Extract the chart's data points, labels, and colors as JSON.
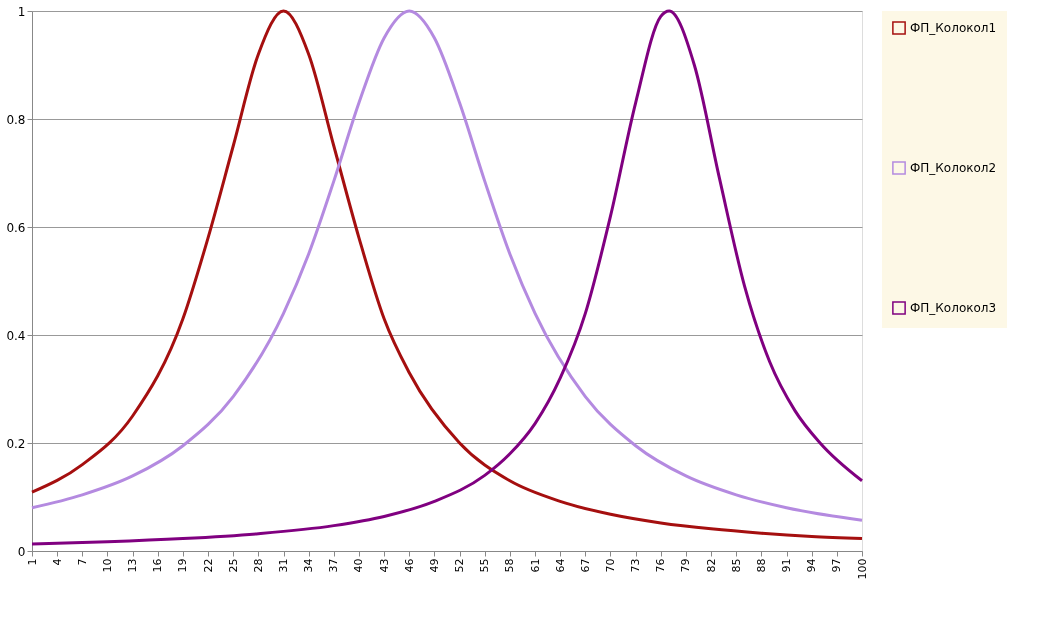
{
  "chart_data": {
    "type": "line",
    "xlim": [
      1,
      100
    ],
    "xticks": [
      1,
      4,
      7,
      10,
      13,
      16,
      19,
      22,
      25,
      28,
      31,
      34,
      37,
      40,
      43,
      46,
      49,
      52,
      55,
      58,
      61,
      64,
      67,
      70,
      73,
      76,
      79,
      82,
      85,
      88,
      91,
      94,
      97,
      100
    ],
    "ylim": [
      0,
      1
    ],
    "yticks": [
      0,
      0.2,
      0.4,
      0.6,
      0.8,
      1
    ],
    "grid": "y",
    "legend": "right",
    "marker": "none",
    "line_style": "solid",
    "series": [
      {
        "name": "ФП_Колокол1",
        "color": "#a50f0f",
        "x": [
          1,
          7,
          13,
          19,
          22,
          25,
          28,
          31,
          34,
          37,
          40,
          43,
          46,
          52,
          58,
          64,
          70,
          76,
          82,
          88,
          94,
          100
        ],
        "values": [
          0.109,
          0.16,
          0.25,
          0.43,
          0.58,
          0.75,
          0.92,
          1,
          0.92,
          0.75,
          0.58,
          0.43,
          0.33,
          0.2,
          0.13,
          0.092,
          0.068,
          0.052,
          0.041,
          0.033,
          0.027,
          0.023
        ]
      },
      {
        "name": "ФП_Колокол2",
        "color": "#b48ae0",
        "x": [
          1,
          7,
          13,
          19,
          25,
          31,
          34,
          37,
          40,
          43,
          46,
          49,
          52,
          55,
          58,
          61,
          67,
          73,
          79,
          85,
          91,
          100
        ],
        "values": [
          0.08,
          0.104,
          0.139,
          0.195,
          0.286,
          0.44,
          0.55,
          0.685,
          0.83,
          0.95,
          1,
          0.95,
          0.83,
          0.685,
          0.55,
          0.44,
          0.286,
          0.195,
          0.139,
          0.104,
          0.08,
          0.057
        ]
      },
      {
        "name": "ФП_Колокол3",
        "color": "#800080",
        "x": [
          1,
          10,
          19,
          28,
          37,
          43,
          49,
          55,
          58,
          61,
          64,
          67,
          70,
          73,
          76,
          77,
          80,
          83,
          86,
          89,
          92,
          95,
          100
        ],
        "values": [
          0.013,
          0.017,
          0.023,
          0.032,
          0.047,
          0.064,
          0.092,
          0.14,
          0.18,
          0.236,
          0.32,
          0.44,
          0.62,
          0.83,
          0.99,
          1,
          0.9,
          0.69,
          0.49,
          0.35,
          0.26,
          0.2,
          0.13
        ]
      }
    ]
  }
}
